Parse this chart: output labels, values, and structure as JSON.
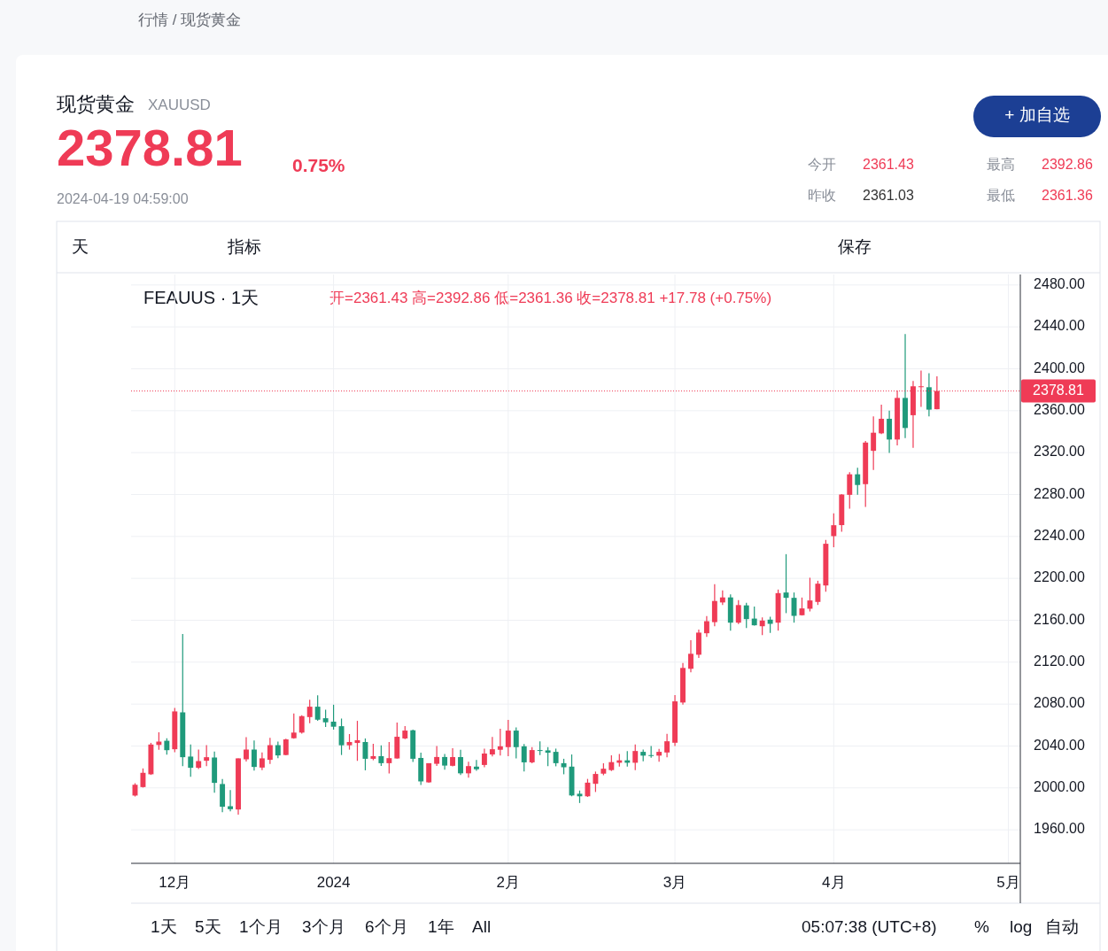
{
  "chart_data": {
    "type": "candlestick",
    "title": "现货黄金",
    "subtitle": "XAUUSD",
    "annotations": [
      "行情 / 现货黄金",
      "2378.81",
      "0.75%",
      "2024-04-19 04:59:00",
      "今开",
      "2361.43",
      "最高",
      "2392.86",
      "昨收",
      "2361.03",
      "最低",
      "2361.36",
      "+ 加自选",
      "天",
      "指标",
      "保存",
      "FEAUUS · 1天",
      "开=2361.43 高=2392.86 低=2361.36 收=2378.81 +17.78 (+0.75%)",
      "1天",
      "5天",
      "1个月",
      "3个月",
      "6个月",
      "1年",
      "All",
      "05:07:38 (UTC+8)",
      "%",
      "log",
      "自动"
    ],
    "categories": [
      null,
      null,
      null,
      null,
      null,
      "12月",
      null,
      null,
      null,
      null,
      null,
      null,
      null,
      null,
      null,
      null,
      null,
      null,
      null,
      null,
      null,
      null,
      null,
      null,
      null,
      "2024",
      null,
      null,
      null,
      null,
      null,
      null,
      null,
      null,
      null,
      null,
      null,
      null,
      null,
      null,
      null,
      null,
      null,
      null,
      null,
      null,
      null,
      "2月",
      null,
      null,
      null,
      null,
      null,
      null,
      null,
      null,
      null,
      null,
      null,
      null,
      null,
      null,
      null,
      null,
      null,
      null,
      null,
      null,
      "3月",
      null,
      null,
      null,
      null,
      null,
      null,
      null,
      null,
      null,
      null,
      null,
      null,
      null,
      null,
      null,
      null,
      null,
      null,
      null,
      "4月",
      null,
      null,
      null,
      null,
      null,
      null,
      null,
      null,
      null,
      null,
      null,
      null,
      null,
      null,
      null,
      null,
      null,
      null,
      null,
      null,
      null,
      "5月",
      null
    ],
    "ohlc": [
      [
        1992.7,
        2004.5,
        1991.8,
        2003
      ],
      [
        2000.8,
        2018.6,
        2000.3,
        2014.4
      ],
      [
        2013,
        2043,
        2012.4,
        2041.4
      ],
      [
        2041,
        2053,
        2036.3,
        2044.2
      ],
      [
        2045,
        2047.3,
        2031.8,
        2036
      ],
      [
        2036.9,
        2076.3,
        2034.1,
        2073
      ],
      [
        2072.1,
        2146.8,
        2020.8,
        2029.3
      ],
      [
        2029.9,
        2041.4,
        2010.7,
        2019.2
      ],
      [
        2019.2,
        2036.6,
        2018,
        2025.6
      ],
      [
        2025.9,
        2040.8,
        2020.8,
        2029.3
      ],
      [
        2029,
        2034.6,
        1995.5,
        2004.8
      ],
      [
        2003.7,
        2008.4,
        1976.9,
        1982
      ],
      [
        1982.5,
        1998,
        1977.7,
        1979.7
      ],
      [
        1979.4,
        2028.2,
        1974.4,
        2028.2
      ],
      [
        2027.3,
        2048.4,
        2025.1,
        2036.6
      ],
      [
        2036.6,
        2045.3,
        2016.6,
        2020
      ],
      [
        2019.4,
        2033.8,
        2016.9,
        2028.2
      ],
      [
        2026.8,
        2047.9,
        2022.8,
        2040.8
      ],
      [
        2040.8,
        2044.2,
        2028.4,
        2031
      ],
      [
        2031.4,
        2047,
        2031,
        2046.3
      ],
      [
        2047.4,
        2071,
        2046.9,
        2052.8
      ],
      [
        2052.8,
        2069.3,
        2051.9,
        2068.5
      ],
      [
        2067.6,
        2084.2,
        2061.8,
        2077.5
      ],
      [
        2077.5,
        2088.4,
        2064,
        2065.1
      ],
      [
        2066.5,
        2074.7,
        2058.1,
        2062.6
      ],
      [
        2063.2,
        2079.4,
        2055.6,
        2058.4
      ],
      [
        2058.9,
        2066.2,
        2031.4,
        2040.7
      ],
      [
        2040.7,
        2051.4,
        2036.5,
        2043.8
      ],
      [
        2042.9,
        2064,
        2025.8,
        2045.5
      ],
      [
        2043.8,
        2047.2,
        2016.8,
        2027.8
      ],
      [
        2027.8,
        2042.1,
        2026.4,
        2030.3
      ],
      [
        2030.3,
        2040.7,
        2021,
        2023.6
      ],
      [
        2023.6,
        2043.8,
        2013.8,
        2028.4
      ],
      [
        2028.1,
        2062.3,
        2028,
        2048.8
      ],
      [
        2047.2,
        2058.9,
        2046.6,
        2054.7
      ],
      [
        2055,
        2055.6,
        2024.7,
        2027.8
      ],
      [
        2028.6,
        2033.7,
        2002.8,
        2006.2
      ],
      [
        2005.3,
        2023.6,
        2005,
        2023.6
      ],
      [
        2023,
        2039.9,
        2021,
        2029.5
      ],
      [
        2029.5,
        2032.3,
        2017.4,
        2021.3
      ],
      [
        2021.1,
        2037.8,
        2020.6,
        2029.4
      ],
      [
        2029.4,
        2036.4,
        2012.2,
        2013.9
      ],
      [
        2013.9,
        2025,
        2009.7,
        2020.8
      ],
      [
        2020.3,
        2026.7,
        2016.4,
        2017.8
      ],
      [
        2021.9,
        2037.5,
        2019.7,
        2032.8
      ],
      [
        2031.9,
        2048.6,
        2030,
        2036.9
      ],
      [
        2036.4,
        2056.4,
        2030.8,
        2039.7
      ],
      [
        2038.9,
        2065,
        2030.3,
        2054.7
      ],
      [
        2054.7,
        2057.8,
        2028.1,
        2038.9
      ],
      [
        2039.7,
        2041.9,
        2015.6,
        2024.4
      ],
      [
        2024.4,
        2038.9,
        2023.6,
        2036.1
      ],
      [
        2036.1,
        2044.4,
        2031.4,
        2035.6
      ],
      [
        2035.8,
        2038.9,
        2020.8,
        2033.6
      ],
      [
        2034.4,
        2037.5,
        2020.6,
        2023.6
      ],
      [
        2023.6,
        2027.8,
        2013,
        2019.7
      ],
      [
        2020.3,
        2031.9,
        1992,
        1992.8
      ],
      [
        1994.4,
        1997.5,
        1985.6,
        1992
      ],
      [
        1992,
        2008.6,
        1991.4,
        2005
      ],
      [
        2003.9,
        2015.6,
        1996.1,
        2013.3
      ],
      [
        2013.6,
        2023.6,
        2012,
        2018.3
      ],
      [
        2017,
        2031,
        2016,
        2024.6
      ],
      [
        2024,
        2032.4,
        2020.4,
        2026.3
      ],
      [
        2026.3,
        2035.2,
        2020.4,
        2024
      ],
      [
        2024,
        2041.4,
        2017,
        2035.2
      ],
      [
        2034.4,
        2036.6,
        2025.4,
        2030.8
      ],
      [
        2031.3,
        2040,
        2028.8,
        2030.5
      ],
      [
        2030.8,
        2037.2,
        2024.9,
        2034.4
      ],
      [
        2033.8,
        2051.5,
        2029.1,
        2044.5
      ],
      [
        2043.1,
        2088.5,
        2040,
        2082.6
      ],
      [
        2081.5,
        2119.3,
        2079.5,
        2114.5
      ],
      [
        2113.7,
        2140.9,
        2110.3,
        2128
      ],
      [
        2127.1,
        2151.2,
        2124.1,
        2148.2
      ],
      [
        2147.6,
        2164.1,
        2144.2,
        2159.1
      ],
      [
        2158.2,
        2194.4,
        2154.3,
        2178.4
      ],
      [
        2177,
        2188.5,
        2174.5,
        2181.8
      ],
      [
        2181.8,
        2184.6,
        2150.1,
        2157.7
      ],
      [
        2157.7,
        2179.3,
        2156.3,
        2174.5
      ],
      [
        2174.2,
        2176.7,
        2152.6,
        2161.1
      ],
      [
        2161.6,
        2173.1,
        2155,
        2155.2
      ],
      [
        2154.3,
        2162.7,
        2145.9,
        2159.7
      ],
      [
        2160.6,
        2163.4,
        2147.9,
        2156.6
      ],
      [
        2157.7,
        2189.3,
        2150.1,
        2185.9
      ],
      [
        2186.5,
        2223.1,
        2166.8,
        2181.4
      ],
      [
        2181.4,
        2186.5,
        2157.7,
        2164.2
      ],
      [
        2164.8,
        2181.7,
        2164.5,
        2171.3
      ],
      [
        2171,
        2200.6,
        2168.4,
        2178.9
      ],
      [
        2177.5,
        2197.7,
        2174.6,
        2194.9
      ],
      [
        2193.2,
        2236.6,
        2187.3,
        2233
      ],
      [
        2240.3,
        2262,
        2229.6,
        2250.7
      ],
      [
        2250.8,
        2280.5,
        2244.5,
        2280
      ],
      [
        2279.7,
        2301.3,
        2266.4,
        2299.3
      ],
      [
        2299.3,
        2305.5,
        2279.7,
        2289.1
      ],
      [
        2289.9,
        2331.1,
        2268.1,
        2329.6
      ],
      [
        2321.7,
        2354.6,
        2303.5,
        2339
      ],
      [
        2338.4,
        2365.7,
        2337.6,
        2352.3
      ],
      [
        2352.3,
        2360,
        2319.7,
        2332.5
      ],
      [
        2332.5,
        2379.3,
        2326.8,
        2372.2
      ],
      [
        2372.2,
        2433.2,
        2333.9,
        2343.5
      ],
      [
        2355.7,
        2388.4,
        2324.5,
        2383.3
      ],
      [
        2382.7,
        2398.3,
        2363.7,
        2383.3
      ],
      [
        2382.4,
        2395.7,
        2354.6,
        2361.03
      ],
      [
        2361.43,
        2392.86,
        2361.36,
        2378.81
      ],
      null,
      null,
      null,
      null,
      null,
      null,
      null,
      null,
      null,
      null
    ],
    "colors": [
      "#ef3b56",
      "#ef3b56",
      "#ef3b56",
      "#ef3b56",
      "#1f9a7b",
      "#ef3b56",
      "#1f9a7b",
      "#1f9a7b",
      "#ef3b56",
      "#ef3b56",
      "#1f9a7b",
      "#1f9a7b",
      "#1f9a7b",
      "#ef3b56",
      "#ef3b56",
      "#1f9a7b",
      "#ef3b56",
      "#ef3b56",
      "#1f9a7b",
      "#ef3b56",
      "#ef3b56",
      "#ef3b56",
      "#ef3b56",
      "#1f9a7b",
      "#1f9a7b",
      "#1f9a7b",
      "#1f9a7b",
      "#ef3b56",
      "#ef3b56",
      "#1f9a7b",
      "#ef3b56",
      "#1f9a7b",
      "#ef3b56",
      "#ef3b56",
      "#ef3b56",
      "#1f9a7b",
      "#1f9a7b",
      "#ef3b56",
      "#ef3b56",
      "#1f9a7b",
      "#ef3b56",
      "#1f9a7b",
      "#ef3b56",
      "#1f9a7b",
      "#ef3b56",
      "#ef3b56",
      "#ef3b56",
      "#ef3b56",
      "#1f9a7b",
      "#1f9a7b",
      "#ef3b56",
      "#1f9a7b",
      "#1f9a7b",
      "#1f9a7b",
      "#1f9a7b",
      "#1f9a7b",
      "#1f9a7b",
      "#ef3b56",
      "#ef3b56",
      "#ef3b56",
      "#ef3b56",
      "#ef3b56",
      "#1f9a7b",
      "#ef3b56",
      "#1f9a7b",
      "#1f9a7b",
      "#ef3b56",
      "#ef3b56",
      "#ef3b56",
      "#ef3b56",
      "#ef3b56",
      "#ef3b56",
      "#ef3b56",
      "#ef3b56",
      "#ef3b56",
      "#1f9a7b",
      "#ef3b56",
      "#1f9a7b",
      "#1f9a7b",
      "#ef3b56",
      "#1f9a7b",
      "#ef3b56",
      "#1f9a7b",
      "#1f9a7b",
      "#ef3b56",
      "#ef3b56",
      "#ef3b56",
      "#ef3b56",
      "#ef3b56",
      "#ef3b56",
      "#ef3b56",
      "#1f9a7b",
      "#ef3b56",
      "#ef3b56",
      "#ef3b56",
      "#1f9a7b",
      "#ef3b56",
      "#1f9a7b",
      "#ef3b56",
      "#ef3b56",
      "#1f9a7b",
      "#ef3b56",
      null,
      null,
      null,
      null,
      null,
      null,
      null,
      null,
      null,
      null
    ],
    "ylim": [
      1928,
      2490
    ],
    "yticks": [
      {
        "value": 1960,
        "label": "1960.00"
      },
      {
        "value": 2000,
        "label": "2000.00"
      },
      {
        "value": 2040,
        "label": "2040.00"
      },
      {
        "value": 2080,
        "label": "2080.00"
      },
      {
        "value": 2120,
        "label": "2120.00"
      },
      {
        "value": 2160,
        "label": "2160.00"
      },
      {
        "value": 2200,
        "label": "2200.00"
      },
      {
        "value": 2240,
        "label": "2240.00"
      },
      {
        "value": 2280,
        "label": "2280.00"
      },
      {
        "value": 2320,
        "label": "2320.00"
      },
      {
        "value": 2360,
        "label": "2360.00"
      },
      {
        "value": 2400,
        "label": "2400.00"
      },
      {
        "value": 2440,
        "label": "2440.00"
      },
      {
        "value": 2480,
        "label": "2480.00"
      }
    ],
    "ref_lines": [
      {
        "axis": "y",
        "value": 2378.81,
        "label": "2378.81",
        "color": "#ef3b56",
        "line_style": "dotted"
      }
    ],
    "grid": true
  }
}
